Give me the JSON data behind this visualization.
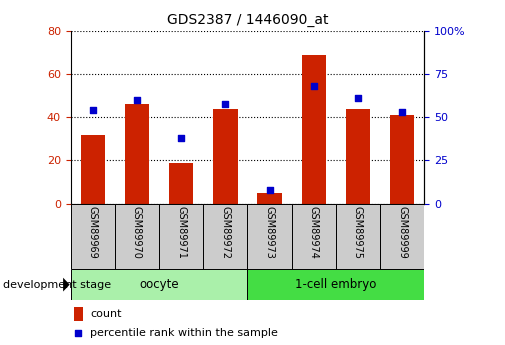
{
  "title": "GDS2387 / 1446090_at",
  "categories": [
    "GSM89969",
    "GSM89970",
    "GSM89971",
    "GSM89972",
    "GSM89973",
    "GSM89974",
    "GSM89975",
    "GSM89999"
  ],
  "count_values": [
    32,
    46,
    19,
    44,
    5,
    69,
    44,
    41
  ],
  "percentile_values": [
    54,
    60,
    38,
    58,
    8,
    68,
    61,
    53
  ],
  "left_ylim": [
    0,
    80
  ],
  "right_ylim": [
    0,
    100
  ],
  "left_yticks": [
    0,
    20,
    40,
    60,
    80
  ],
  "right_yticks": [
    0,
    25,
    50,
    75,
    100
  ],
  "right_yticklabels": [
    "0",
    "25",
    "50",
    "75",
    "100%"
  ],
  "bar_color": "#cc2200",
  "dot_color": "#0000cc",
  "bar_width": 0.55,
  "groups": [
    {
      "label": "oocyte",
      "start": 0,
      "end": 3,
      "color": "#aaf0aa"
    },
    {
      "label": "1-cell embryo",
      "start": 4,
      "end": 7,
      "color": "#44dd44"
    }
  ],
  "xlabel_text": "development stage",
  "legend_count_label": "count",
  "legend_percentile_label": "percentile rank within the sample",
  "tick_label_color_left": "#cc2200",
  "tick_label_color_right": "#0000cc",
  "cat_box_color": "#cccccc",
  "outer_bg": "#ffffff"
}
